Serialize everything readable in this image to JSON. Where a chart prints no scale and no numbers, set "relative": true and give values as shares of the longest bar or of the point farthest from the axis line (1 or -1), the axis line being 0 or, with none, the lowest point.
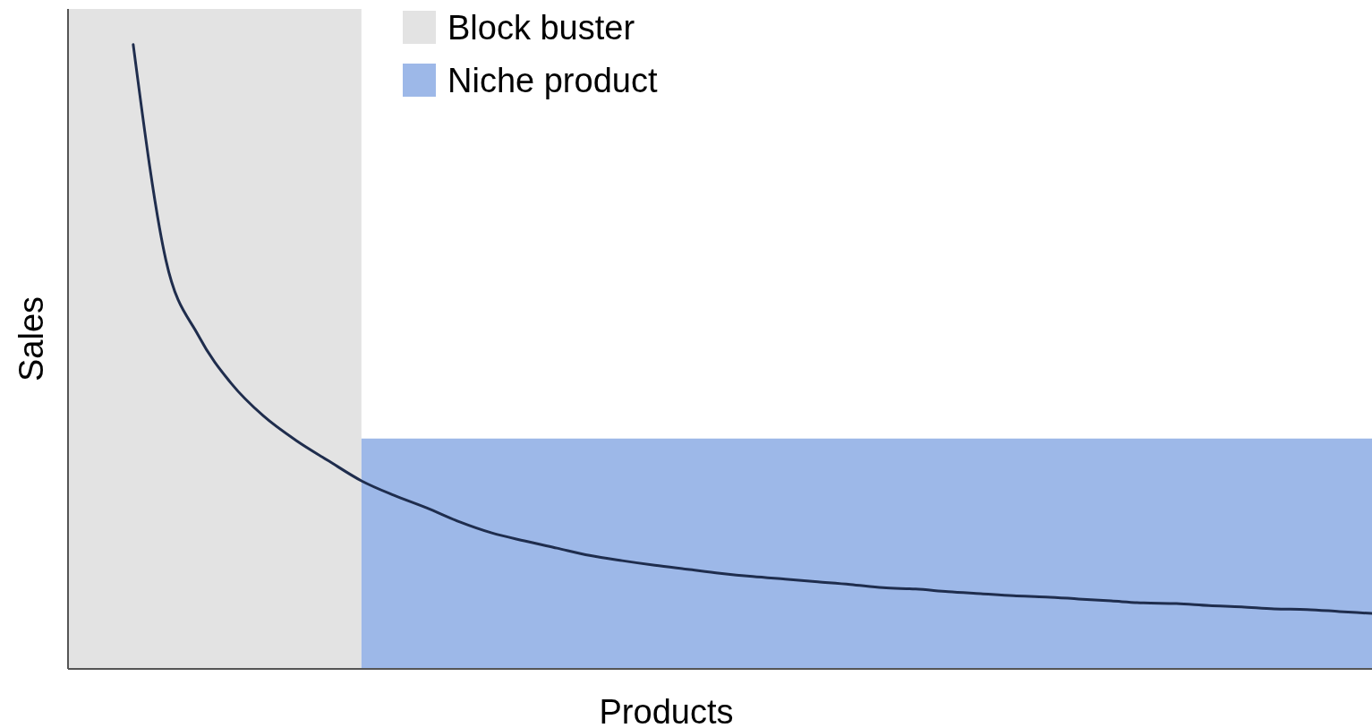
{
  "chart_data": {
    "type": "line",
    "relative": true,
    "xlabel": "Products",
    "ylabel": "Sales",
    "legend": "top",
    "categories": [
      null,
      null,
      null,
      null,
      null,
      null,
      null,
      null,
      null,
      null,
      null,
      null,
      null,
      null,
      null,
      null,
      null,
      null,
      null,
      null,
      null,
      null,
      null,
      null,
      null,
      null,
      null,
      null,
      null,
      null,
      null,
      null,
      null,
      null,
      null,
      null,
      null,
      null,
      null,
      null,
      null
    ],
    "series": [
      {
        "name": "Block buster",
        "type": "area",
        "color": "#e3e3e3",
        "values": [
          1,
          1,
          1,
          1,
          1,
          1,
          1,
          1,
          1,
          1,
          null,
          null,
          null,
          null,
          null,
          null,
          null,
          null,
          null,
          null,
          null,
          null,
          null,
          null,
          null,
          null,
          null,
          null,
          null,
          null,
          null,
          null,
          null,
          null,
          null,
          null,
          null,
          null,
          null,
          null,
          null
        ]
      },
      {
        "name": "Niche product",
        "type": "area",
        "color": "#9db8e8",
        "values": [
          null,
          null,
          null,
          null,
          null,
          null,
          null,
          null,
          null,
          0.349,
          0.349,
          0.349,
          0.349,
          0.349,
          0.349,
          0.349,
          0.349,
          0.349,
          0.349,
          0.349,
          0.349,
          0.349,
          0.349,
          0.349,
          0.349,
          0.349,
          0.349,
          0.349,
          0.349,
          0.349,
          0.349,
          0.349,
          0.349,
          0.349,
          0.349,
          0.349,
          0.349,
          0.349,
          0.349,
          0.349,
          0.349
        ]
      },
      {
        "color": "#1f2d4d",
        "values": [
          null,
          null,
          0.946,
          0.62,
          0.505,
          0.433,
          0.383,
          0.346,
          0.315,
          0.285,
          0.263,
          0.244,
          0.223,
          0.206,
          0.194,
          0.183,
          0.172,
          0.164,
          0.157,
          0.151,
          0.145,
          0.14,
          0.136,
          0.132,
          0.128,
          0.123,
          0.121,
          0.117,
          0.114,
          0.111,
          0.109,
          0.106,
          0.103,
          0.1,
          0.099,
          0.096,
          0.094,
          0.091,
          0.09,
          0.087,
          0.084
        ]
      }
    ]
  }
}
